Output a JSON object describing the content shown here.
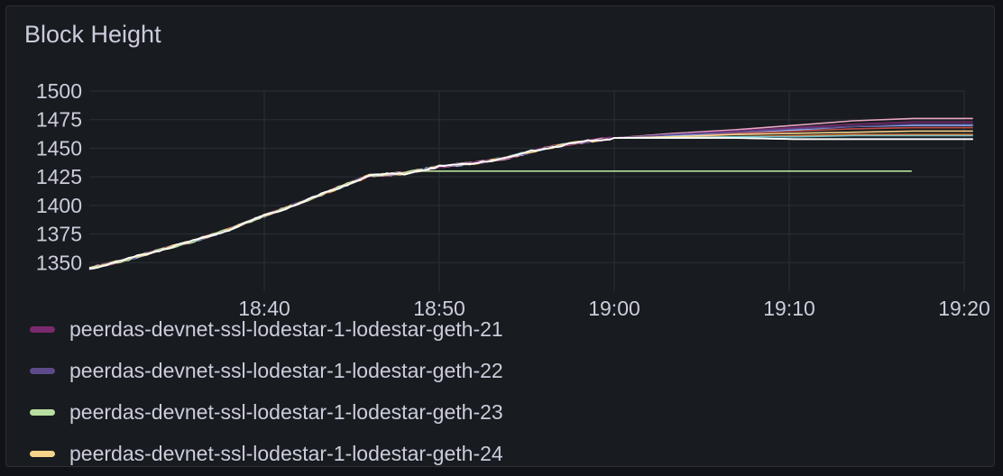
{
  "panel": {
    "title": "Block Height"
  },
  "colors": {
    "background": "#111217",
    "panel_bg": "#181b1f",
    "grid": "#2c3037",
    "text": "#ccccdc"
  },
  "chart_data": {
    "type": "line",
    "title": "Block Height",
    "xlabel": "",
    "ylabel": "",
    "x_ticks": [
      "18:40",
      "18:50",
      "19:00",
      "19:10",
      "19:20"
    ],
    "y_ticks": [
      1350,
      1375,
      1400,
      1425,
      1450,
      1475,
      1500
    ],
    "xlim": [
      "18:30",
      "19:20"
    ],
    "ylim": [
      1325,
      1500
    ],
    "grid": true,
    "legend_position": "bottom",
    "series_shared_path": [
      [
        "18:30",
        1345
      ],
      [
        "18:32",
        1352
      ],
      [
        "18:34",
        1361
      ],
      [
        "18:36",
        1369
      ],
      [
        "18:38",
        1379
      ],
      [
        "18:40",
        1391
      ],
      [
        "18:42",
        1402
      ],
      [
        "18:44",
        1414
      ],
      [
        "18:46",
        1426
      ],
      [
        "18:48",
        1428
      ],
      [
        "18:50",
        1434
      ],
      [
        "18:52",
        1437
      ],
      [
        "18:54",
        1442
      ],
      [
        "18:56",
        1450
      ],
      [
        "18:58",
        1455
      ],
      [
        "19:00",
        1459
      ]
    ],
    "series": [
      {
        "name": "peerdas-devnet-ssl-lodestar-1-lodestar-geth-21",
        "color": "#7a2a6e",
        "final": 1473
      },
      {
        "name": "peerdas-devnet-ssl-lodestar-1-lodestar-geth-22",
        "color": "#5c4a8a",
        "final": 1471
      },
      {
        "name": "peerdas-devnet-ssl-lodestar-1-lodestar-geth-23",
        "color": "#b8dfa1",
        "final": 1430,
        "stops_at": "19:17",
        "diverges_at": "18:49"
      },
      {
        "name": "peerdas-devnet-ssl-lodestar-1-lodestar-geth-24",
        "color": "#f5d38a",
        "final": 1465
      }
    ],
    "other_visible_lines": [
      {
        "color": "#ffffff",
        "final": 1458
      },
      {
        "color": "#e07b39",
        "final": 1462
      },
      {
        "color": "#c04a4a",
        "final": 1468
      },
      {
        "color": "#8ab8ff",
        "final": 1470
      },
      {
        "color": "#e8a6c4",
        "final": 1476
      },
      {
        "color": "#6fc2c9",
        "final": 1461
      }
    ]
  },
  "legend": {
    "items": [
      {
        "label": "peerdas-devnet-ssl-lodestar-1-lodestar-geth-21",
        "color": "#7a2a6e"
      },
      {
        "label": "peerdas-devnet-ssl-lodestar-1-lodestar-geth-22",
        "color": "#5c4a8a"
      },
      {
        "label": "peerdas-devnet-ssl-lodestar-1-lodestar-geth-23",
        "color": "#b8dfa1"
      },
      {
        "label": "peerdas-devnet-ssl-lodestar-1-lodestar-geth-24",
        "color": "#f5d38a"
      }
    ]
  }
}
